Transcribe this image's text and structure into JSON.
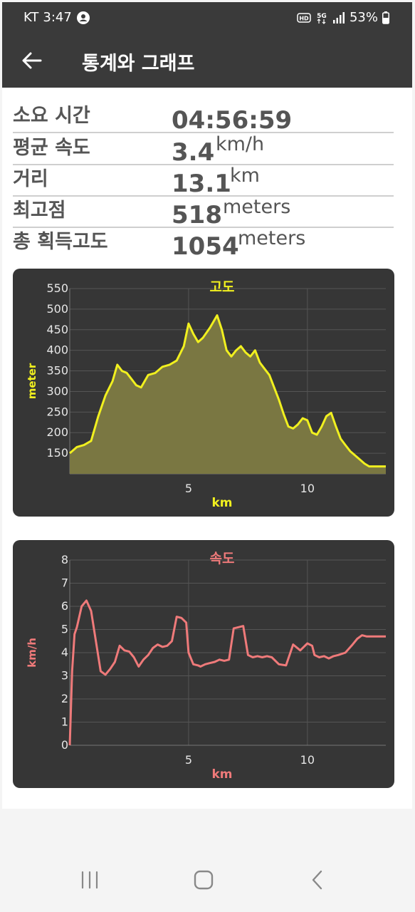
{
  "status": {
    "carrier": "KT",
    "time": "3:47",
    "battery": "53%"
  },
  "header": {
    "title": "통계와 그래프"
  },
  "stats": [
    {
      "label": "소요 시간",
      "value": "04:56:59",
      "unit": ""
    },
    {
      "label": "평균 속도",
      "value": "3.4",
      "unit": "km/h"
    },
    {
      "label": "거리",
      "value": "13.1",
      "unit": "km"
    },
    {
      "label": "최고점",
      "value": "518",
      "unit": "meters"
    },
    {
      "label": "총 획득고도",
      "value": "1054",
      "unit": "meters"
    }
  ],
  "chart_data": [
    {
      "type": "area",
      "title": "고도",
      "xlabel": "km",
      "ylabel": "meter",
      "color": "#f1f01f",
      "fill": "#7a7742",
      "xlim": [
        0,
        13.3
      ],
      "ylim": [
        100,
        550
      ],
      "xticks": [
        5,
        10
      ],
      "yticks": [
        150,
        200,
        250,
        300,
        350,
        400,
        450,
        500,
        550
      ],
      "grid": true,
      "x": [
        0,
        0.3,
        0.6,
        0.9,
        1.2,
        1.5,
        1.8,
        2.0,
        2.2,
        2.4,
        2.6,
        2.8,
        3.0,
        3.3,
        3.6,
        3.9,
        4.2,
        4.5,
        4.8,
        5.0,
        5.2,
        5.4,
        5.6,
        5.9,
        6.2,
        6.4,
        6.6,
        6.8,
        7.0,
        7.2,
        7.4,
        7.6,
        7.8,
        8.0,
        8.2,
        8.4,
        8.6,
        8.8,
        9.0,
        9.2,
        9.4,
        9.6,
        9.8,
        10.0,
        10.2,
        10.4,
        10.6,
        10.8,
        11.0,
        11.2,
        11.4,
        11.6,
        11.8,
        12.0,
        12.2,
        12.4,
        12.6,
        12.8,
        13.0,
        13.3
      ],
      "y": [
        150,
        165,
        170,
        180,
        240,
        290,
        325,
        365,
        350,
        345,
        330,
        315,
        310,
        340,
        345,
        360,
        365,
        375,
        410,
        465,
        440,
        420,
        430,
        455,
        485,
        450,
        400,
        385,
        400,
        410,
        395,
        385,
        400,
        370,
        355,
        340,
        310,
        280,
        245,
        215,
        210,
        220,
        235,
        230,
        200,
        195,
        215,
        240,
        248,
        215,
        185,
        170,
        155,
        145,
        135,
        125,
        118,
        118,
        118,
        118
      ]
    },
    {
      "type": "line",
      "title": "속도",
      "xlabel": "km",
      "ylabel": "km/h",
      "color": "#ef7a7a",
      "xlim": [
        0,
        13.3
      ],
      "ylim": [
        0,
        8
      ],
      "xticks": [
        5,
        10
      ],
      "yticks": [
        0,
        1,
        2,
        3,
        4,
        5,
        6,
        7,
        8
      ],
      "grid": true,
      "x": [
        0,
        0.1,
        0.2,
        0.3,
        0.5,
        0.7,
        0.9,
        1.1,
        1.3,
        1.5,
        1.7,
        1.9,
        2.1,
        2.3,
        2.5,
        2.7,
        2.9,
        3.1,
        3.3,
        3.5,
        3.7,
        3.9,
        4.1,
        4.3,
        4.5,
        4.7,
        4.9,
        5.0,
        5.2,
        5.4,
        5.5,
        5.7,
        5.9,
        6.1,
        6.3,
        6.5,
        6.7,
        6.9,
        7.1,
        7.3,
        7.5,
        7.7,
        7.9,
        8.1,
        8.3,
        8.5,
        8.8,
        9.1,
        9.4,
        9.7,
        10.0,
        10.2,
        10.3,
        10.5,
        10.7,
        10.9,
        11.1,
        11.3,
        11.6,
        11.9,
        12.1,
        12.3,
        12.5,
        12.7,
        12.9,
        13.1,
        13.3
      ],
      "y": [
        0,
        3.2,
        4.8,
        5.1,
        6.0,
        6.25,
        5.8,
        4.5,
        3.2,
        3.05,
        3.3,
        3.6,
        4.3,
        4.1,
        4.05,
        3.8,
        3.4,
        3.7,
        3.9,
        4.2,
        4.35,
        4.25,
        4.3,
        4.5,
        5.55,
        5.5,
        5.3,
        4.0,
        3.5,
        3.45,
        3.4,
        3.5,
        3.55,
        3.6,
        3.7,
        3.65,
        3.7,
        5.05,
        5.1,
        5.15,
        3.9,
        3.8,
        3.85,
        3.8,
        3.85,
        3.8,
        3.5,
        3.45,
        4.35,
        4.1,
        4.4,
        4.3,
        3.9,
        3.8,
        3.85,
        3.75,
        3.85,
        3.9,
        4.0,
        4.35,
        4.6,
        4.75,
        4.7,
        4.7,
        4.7,
        4.7,
        4.7
      ]
    }
  ],
  "nav": {
    "recents": "recents",
    "home": "home",
    "back": "back"
  },
  "icons": [
    "account-circle-icon",
    "hd-icon",
    "5g-icon",
    "signal-icon",
    "battery-icon",
    "back-arrow-icon",
    "recents-icon",
    "home-icon",
    "nav-back-icon"
  ]
}
